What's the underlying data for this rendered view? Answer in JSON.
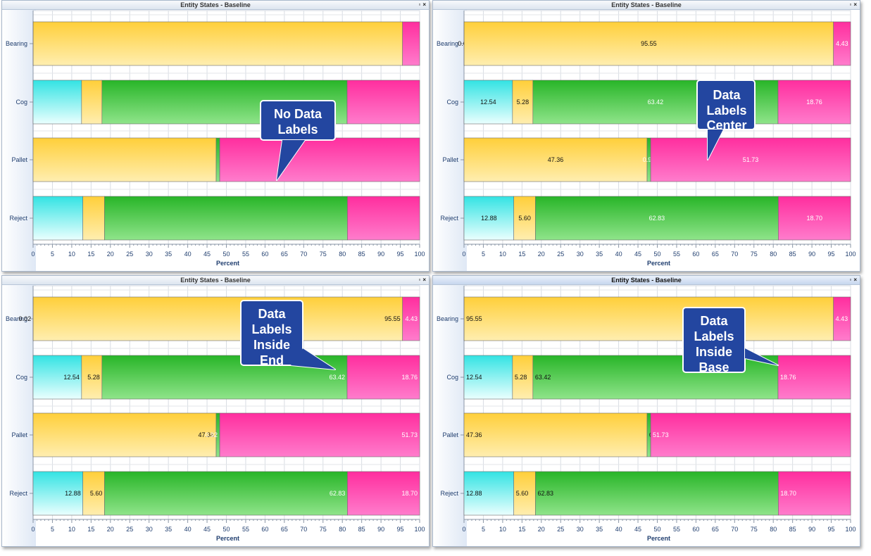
{
  "window_title": "Entity States - Baseline",
  "window_buttons": {
    "restore": "▫",
    "close": "×"
  },
  "colors": {
    "cyan": "#44e8e8",
    "yellow": "#ffd24a",
    "green": "#3ec43e",
    "pink": "#ff3fa8"
  },
  "chart_data": [
    {
      "type": "bar",
      "orientation": "horizontal",
      "stacked": true,
      "title": "Entity States - Baseline",
      "xlabel": "Percent",
      "xlim": [
        0,
        100
      ],
      "xticks": [
        0,
        5,
        10,
        15,
        20,
        25,
        30,
        35,
        40,
        45,
        50,
        55,
        60,
        65,
        70,
        75,
        80,
        85,
        90,
        95,
        100
      ],
      "categories": [
        "Bearing",
        "Cog",
        "Pallet",
        "Reject"
      ],
      "series": [
        {
          "color": "cyan",
          "values": [
            0.02,
            12.54,
            0,
            12.88
          ]
        },
        {
          "color": "yellow",
          "values": [
            95.55,
            5.28,
            47.36,
            5.6
          ]
        },
        {
          "color": "green",
          "values": [
            0,
            63.42,
            0.92,
            62.83
          ]
        },
        {
          "color": "pink",
          "values": [
            4.43,
            18.76,
            51.73,
            18.7
          ]
        }
      ],
      "data_labels": "none",
      "callout": [
        "No Data",
        "Labels"
      ]
    },
    {
      "type": "bar",
      "orientation": "horizontal",
      "stacked": true,
      "title": "Entity States - Baseline",
      "xlabel": "Percent",
      "xlim": [
        0,
        100
      ],
      "xticks": [
        0,
        5,
        10,
        15,
        20,
        25,
        30,
        35,
        40,
        45,
        50,
        55,
        60,
        65,
        70,
        75,
        80,
        85,
        90,
        95,
        100
      ],
      "categories": [
        "Bearing",
        "Cog",
        "Pallet",
        "Reject"
      ],
      "series": [
        {
          "color": "cyan",
          "values": [
            0.02,
            12.54,
            0,
            12.88
          ]
        },
        {
          "color": "yellow",
          "values": [
            95.55,
            5.28,
            47.36,
            5.6
          ]
        },
        {
          "color": "green",
          "values": [
            0,
            63.42,
            0.92,
            62.83
          ]
        },
        {
          "color": "pink",
          "values": [
            4.43,
            18.76,
            51.73,
            18.7
          ]
        }
      ],
      "data_labels": "center",
      "callout": [
        "Data",
        "Labels",
        "Center"
      ]
    },
    {
      "type": "bar",
      "orientation": "horizontal",
      "stacked": true,
      "title": "Entity States - Baseline",
      "xlabel": "Percent",
      "xlim": [
        0,
        100
      ],
      "xticks": [
        0,
        5,
        10,
        15,
        20,
        25,
        30,
        35,
        40,
        45,
        50,
        55,
        60,
        65,
        70,
        75,
        80,
        85,
        90,
        95,
        100
      ],
      "categories": [
        "Bearing",
        "Cog",
        "Pallet",
        "Reject"
      ],
      "series": [
        {
          "color": "cyan",
          "values": [
            0.02,
            12.54,
            0,
            12.88
          ]
        },
        {
          "color": "yellow",
          "values": [
            95.55,
            5.28,
            47.36,
            5.6
          ]
        },
        {
          "color": "green",
          "values": [
            0,
            63.42,
            0.92,
            62.83
          ]
        },
        {
          "color": "pink",
          "values": [
            4.43,
            18.76,
            51.73,
            18.7
          ]
        }
      ],
      "data_labels": "inside-end",
      "callout": [
        "Data",
        "Labels",
        "Inside",
        "End"
      ]
    },
    {
      "type": "bar",
      "orientation": "horizontal",
      "stacked": true,
      "title": "Entity States - Baseline",
      "xlabel": "Percent",
      "xlim": [
        0,
        100
      ],
      "xticks": [
        0,
        5,
        10,
        15,
        20,
        25,
        30,
        35,
        40,
        45,
        50,
        55,
        60,
        65,
        70,
        75,
        80,
        85,
        90,
        95,
        100
      ],
      "categories": [
        "Bearing",
        "Cog",
        "Pallet",
        "Reject"
      ],
      "series": [
        {
          "color": "cyan",
          "values": [
            0.02,
            12.54,
            0,
            12.88
          ]
        },
        {
          "color": "yellow",
          "values": [
            95.55,
            5.28,
            47.36,
            5.6
          ]
        },
        {
          "color": "green",
          "values": [
            0,
            63.42,
            0.92,
            62.83
          ]
        },
        {
          "color": "pink",
          "values": [
            4.43,
            18.76,
            51.73,
            18.7
          ]
        }
      ],
      "data_labels": "inside-base",
      "callout": [
        "Data",
        "Labels",
        "Inside",
        "Base"
      ]
    }
  ]
}
